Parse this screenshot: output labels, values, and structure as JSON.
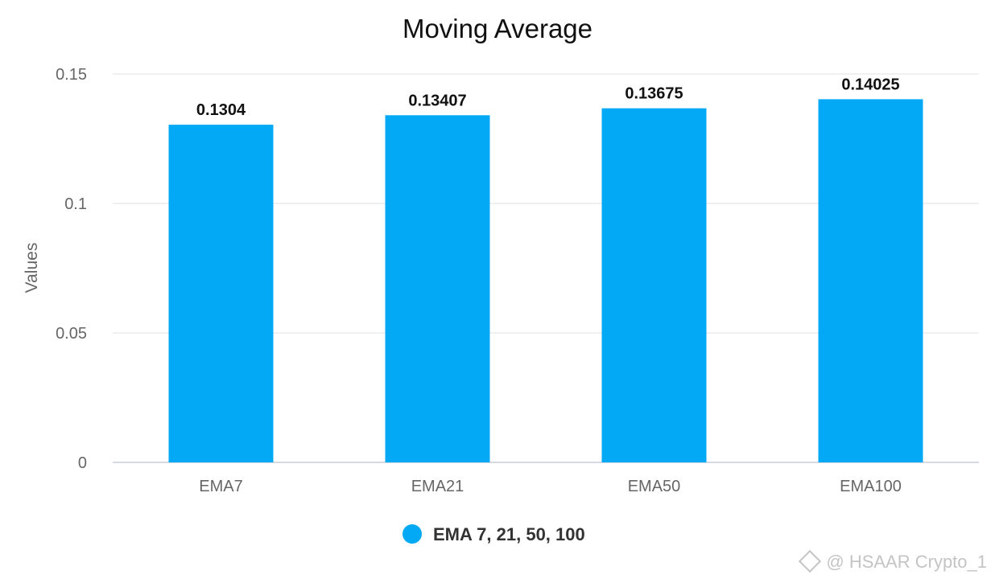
{
  "chart_data": {
    "type": "bar",
    "title": "Moving Average",
    "xlabel": "",
    "ylabel": "Values",
    "categories": [
      "EMA7",
      "EMA21",
      "EMA50",
      "EMA100"
    ],
    "series": [
      {
        "name": "EMA 7, 21, 50, 100",
        "values": [
          0.1304,
          0.13407,
          0.13675,
          0.14025
        ],
        "labels": [
          "0.1304",
          "0.13407",
          "0.13675",
          "0.14025"
        ],
        "color": "#03a9f4"
      }
    ],
    "ylim": [
      0,
      0.15
    ],
    "yticks": [
      0,
      0.05,
      0.1,
      0.15
    ],
    "ytick_labels": [
      "0",
      "0.05",
      "0.1",
      "0.15"
    ],
    "grid": true,
    "legend_position": "bottom"
  },
  "watermark": {
    "text": "@ HSAAR Crypto_1",
    "icon": "diamond-logo-icon"
  }
}
